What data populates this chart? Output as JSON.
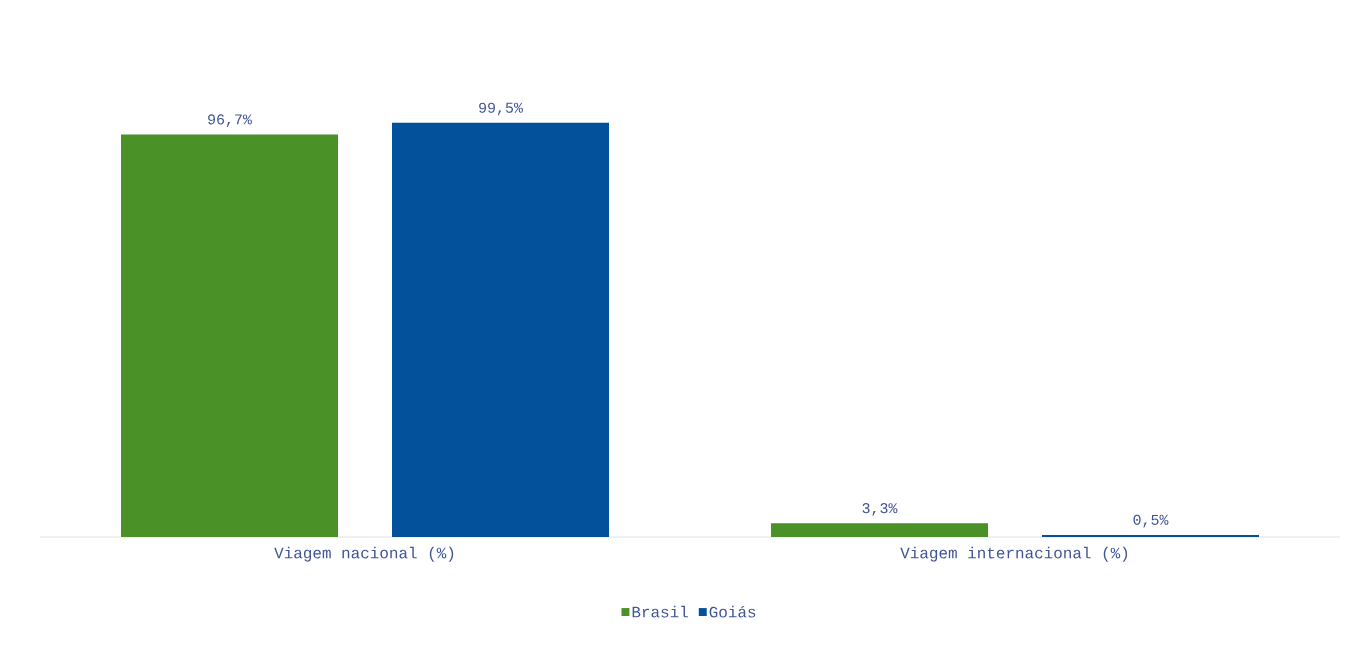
{
  "chart_data": {
    "type": "bar",
    "categories": [
      "Viagem nacional (%)",
      "Viagem internacional (%)"
    ],
    "series": [
      {
        "name": "Brasil",
        "color": "#4a9128",
        "values": [
          96.7,
          3.3
        ],
        "value_labels": [
          "96,7%",
          "3,3%"
        ]
      },
      {
        "name": "Goiás",
        "color": "#03519b",
        "values": [
          99.5,
          0.5
        ],
        "value_labels": [
          "99,5%",
          "0,5%"
        ]
      }
    ],
    "legend": "bottom"
  }
}
